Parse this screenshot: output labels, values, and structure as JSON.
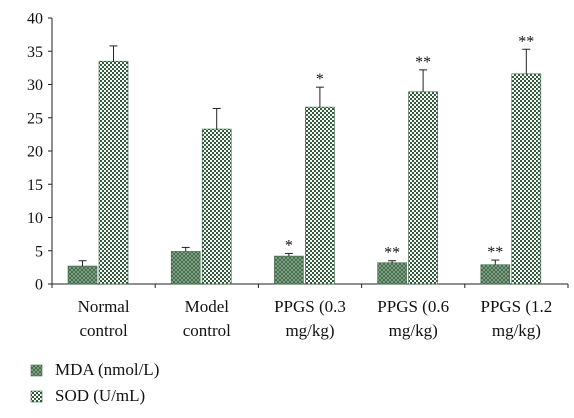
{
  "chart_data": {
    "type": "bar",
    "categories": [
      [
        "Normal",
        "control"
      ],
      [
        "Model",
        "control"
      ],
      [
        "PPGS (0.3",
        "mg/kg)"
      ],
      [
        "PPGS (0.6",
        "mg/kg)"
      ],
      [
        "PPGS (1.2",
        "mg/kg)"
      ]
    ],
    "ylim": [
      0,
      40
    ],
    "yticks": [
      0,
      5,
      10,
      15,
      20,
      25,
      30,
      35,
      40
    ],
    "grid": false,
    "legend_position": "bottom-left",
    "series": [
      {
        "name": "MDA (nmol/L)",
        "values": [
          2.7,
          4.9,
          4.2,
          3.2,
          2.9
        ],
        "errors": [
          0.8,
          0.6,
          0.4,
          0.3,
          0.7
        ],
        "annotations": [
          "",
          "",
          "*",
          "**",
          "**"
        ],
        "color": "#4e7a56",
        "pattern": "fine-crosshatch"
      },
      {
        "name": "SOD (U/mL)",
        "values": [
          33.5,
          23.3,
          26.6,
          28.9,
          31.6
        ],
        "errors": [
          2.3,
          3.1,
          3.0,
          3.3,
          3.7
        ],
        "annotations": [
          "",
          "",
          "*",
          "**",
          "**"
        ],
        "color": "#2f5d3a",
        "pattern": "checker"
      }
    ]
  }
}
